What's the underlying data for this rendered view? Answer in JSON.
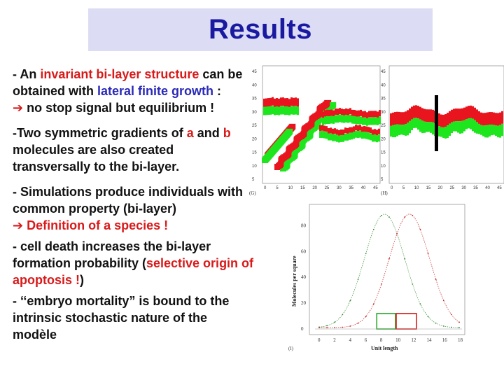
{
  "slide": {
    "title": "Results",
    "p1": {
      "pre": "- An ",
      "hl1": "invariant bi-layer structure",
      "mid": " can be obtained with ",
      "hl2": "lateral finite growth",
      "post": " :",
      "arrow": "➔",
      "line2": " no stop signal but equilibrium !"
    },
    "p2": {
      "pre": "-Two symmetric gradients of ",
      "a": "a",
      "mid": " and ",
      "b": "b",
      "post": " molecules are also created transversally to the bi-layer."
    },
    "p3": {
      "text": "- Simulations produce individuals with common property (bi-layer)",
      "arrow": "➔",
      "hl": " Definition of a species !"
    },
    "p4": {
      "pre": "- cell death increases the bi-layer formation probability (",
      "hl": "selective origin of apoptosis !",
      "post": ")"
    },
    "p5": {
      "text": "- ‘‘embryo mortality” is bound to the intrinsic stochastic nature of the modèle"
    }
  },
  "figure_g": {
    "label": "(G)",
    "y_ticks": [
      "45",
      "40",
      "35",
      "30",
      "25",
      "20",
      "15",
      "10",
      "5"
    ],
    "x_ticks": [
      "0",
      "5",
      "10",
      "15",
      "20",
      "25",
      "30",
      "35",
      "40",
      "45"
    ]
  },
  "figure_h": {
    "label": "(H)",
    "y_ticks": [
      "45",
      "40",
      "35",
      "30",
      "25",
      "20",
      "15",
      "10",
      "5"
    ],
    "x_ticks": [
      "0",
      "5",
      "10",
      "15",
      "20",
      "25",
      "30",
      "35",
      "40",
      "45"
    ]
  },
  "figure_i": {
    "label": "(I)",
    "ylabel": "Molecules per square",
    "xlabel": "Unit length",
    "y_ticks": [
      "80",
      "60",
      "40",
      "20",
      "0"
    ],
    "x_ticks": [
      "0",
      "2",
      "4",
      "6",
      "8",
      "10",
      "12",
      "14",
      "16",
      "18"
    ],
    "colors": {
      "a_curve": "#2d8a2d",
      "b_curve": "#c42020",
      "green_box": "#2eaa2e",
      "red_box": "#d42020"
    }
  }
}
